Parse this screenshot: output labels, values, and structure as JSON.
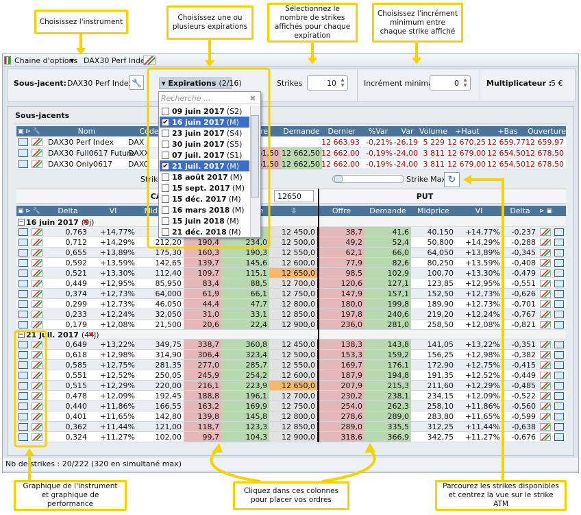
{
  "callouts": [
    "Choisissez l'instrument",
    "Choisissez une ou plusieurs expirations",
    "Sélectionnez le nombre de strikes affichés pour chaque expiration",
    "Choisissez l'incrément minimum entre chaque strike affiché",
    "Graphique de l'instrument et graphique de performance",
    "Cliquez dans ces colonnes pour placer vos ordres",
    "Parcourez les strikes disponibles et centrez la vue sur le strike ATM"
  ],
  "window": {
    "title": "Chaine d'options",
    "instrument": "DAX30 Perf Index"
  },
  "toolbar": {
    "underlying_label": "Sous-jacent:",
    "underlying": "DAX30 Perf Index",
    "expirations_label": "Expirations",
    "expirations_count": "(2/16)",
    "strikes_label": "Strikes",
    "strikes": "10",
    "increment_label": "Incrément minimal",
    "increment": "0",
    "multiplier_label": "Multiplicateur :",
    "multiplier": "5 €"
  },
  "expirations_dropdown": {
    "search_placeholder": "Recherche ...",
    "items": [
      {
        "date": "09 juin 2017",
        "code": "(S2)",
        "checked": false
      },
      {
        "date": "16 juin 2017",
        "code": "(M)",
        "checked": true
      },
      {
        "date": "23 juin 2017",
        "code": "(S4)",
        "checked": false
      },
      {
        "date": "30 juin 2017",
        "code": "(S5)",
        "checked": false
      },
      {
        "date": "07 juil. 2017",
        "code": "(S1)",
        "checked": false
      },
      {
        "date": "21 juil. 2017",
        "code": "(M)",
        "checked": true
      },
      {
        "date": "18 août 2017",
        "code": "(M)",
        "checked": false
      },
      {
        "date": "15 sept. 2017",
        "code": "(M)",
        "checked": false
      },
      {
        "date": "15 déc. 2017",
        "code": "(M)",
        "checked": false
      },
      {
        "date": "16 mars 2018",
        "code": "(M)",
        "checked": false
      },
      {
        "date": "15 juin 2018",
        "code": "(M)",
        "checked": false
      },
      {
        "date": "21 déc. 2018",
        "code": "(M)",
        "checked": false
      }
    ]
  },
  "underlyings": {
    "title": "Sous-jacents",
    "columns": [
      "Nom",
      "Code",
      "Offre",
      "Demande",
      "Dernier",
      "%Var",
      "Var",
      "Volume",
      "+Haut",
      "+Bas",
      "Ouverture"
    ],
    "rows": [
      [
        "DAX30 Perf Index",
        "DAX",
        null,
        null,
        "12 663,93",
        "-0,21%",
        "-26,19",
        "5 229",
        "12 670,25",
        "12 659,77",
        "12 659,97"
      ],
      [
        "DAX30 Full0617 Future",
        "DAXX",
        "12 661,50",
        "12 662,50",
        "12 662,00",
        "-0,19%",
        "-24,00",
        "3 811",
        "12 679,00",
        "12 654,50",
        "12 678,50"
      ],
      [
        "DAX30 Only0617",
        "DAXO",
        "12 661,50",
        "12 662,50",
        "12 662,00",
        "-0,19%",
        "-24,00",
        "3 811",
        "12 679,00",
        "12 654,50",
        "12 678,50"
      ]
    ]
  },
  "strike_bar": {
    "min_label": "Strike Min",
    "value": "12650",
    "max_label": "Strike Max"
  },
  "chain": {
    "call_label": "CALL",
    "put_label": "PUT",
    "columns": [
      "Delta",
      "VI",
      "Midprice",
      "Offre",
      "Demande",
      "⇩",
      "Offre",
      "Demande",
      "Midprice",
      "VI",
      "Delta"
    ],
    "groups": [
      {
        "expiry": "16 juin 2017",
        "days": "(9j)",
        "rows": [
          [
            "0,763",
            "+14,77%",
            null,
            null,
            null,
            "12 450,0",
            "38,7",
            "41,6",
            "40,150",
            "+14,77%",
            "-0,237"
          ],
          [
            "0,712",
            "+14,29%",
            "212,20",
            "190,4",
            "234,0",
            "12 500,0",
            "49,2",
            "52,4",
            "50,800",
            "+14,29%",
            "-0,288"
          ],
          [
            "0,655",
            "+13,89%",
            "175,30",
            "160,3",
            "190,3",
            "12 550,0",
            "62,1",
            "66,0",
            "64,050",
            "+13,89%",
            "-0,345"
          ],
          [
            "0,592",
            "+13,59%",
            "142,65",
            "139,7",
            "145,6",
            "12 600,0",
            "77,9",
            "82,6",
            "80,250",
            "+13,59%",
            "-0,408"
          ],
          [
            "0,521",
            "+13,30%",
            "112,40",
            "109,7",
            "115,1",
            "12 650,0",
            "98,5",
            "102,9",
            "100,70",
            "+13,30%",
            "-0,479"
          ],
          [
            "0,449",
            "+12,95%",
            "85,950",
            "83,4",
            "88,5",
            "12 700,0",
            "120,6",
            "127,1",
            "123,85",
            "+12,95%",
            "-0,551"
          ],
          [
            "0,374",
            "+12,73%",
            "64,000",
            "61,9",
            "66,1",
            "12 750,0",
            "147,9",
            "157,1",
            "152,50",
            "+12,73%",
            "-0,626"
          ],
          [
            "0,299",
            "+12,73%",
            "46,050",
            "44,4",
            "47,7",
            "12 800,0",
            "180,0",
            "199,8",
            "189,90",
            "+12,73%",
            "-0,701"
          ],
          [
            "0,233",
            "+12,24%",
            "32,050",
            "31,0",
            "33,1",
            "12 850,0",
            "197,8",
            "240,6",
            "219,20",
            "+12,24%",
            "-0,767"
          ],
          [
            "0,179",
            "+12,08%",
            "21,500",
            "20,6",
            "22,4",
            "12 900,0",
            "236,0",
            "281,0",
            "258,50",
            "+12,08%",
            "-0,821"
          ]
        ]
      },
      {
        "expiry": "21 juil. 2017",
        "days": "(44j)",
        "rows": [
          [
            "0,649",
            "+13,22%",
            "349,75",
            "338,7",
            "360,8",
            "12 450,0",
            "138,3",
            "143,8",
            "141,05",
            "+13,22%",
            "-0,351"
          ],
          [
            "0,618",
            "+12,98%",
            "314,90",
            "306,4",
            "323,4",
            "12 500,0",
            "153,3",
            "159,2",
            "156,25",
            "+12,98%",
            "-0,382"
          ],
          [
            "0,585",
            "+12,75%",
            "281,35",
            "277,0",
            "285,7",
            "12 550,0",
            "169,7",
            "176,1",
            "172,90",
            "+12,75%",
            "-0,415"
          ],
          [
            "0,551",
            "+12,52%",
            "250,05",
            "245,9",
            "254,2",
            "12 600,0",
            "187,9",
            "194,8",
            "191,35",
            "+12,52%",
            "-0,449"
          ],
          [
            "0,515",
            "+12,29%",
            "220,00",
            "216,1",
            "223,9",
            "12 650,0",
            "207,9",
            "215,3",
            "211,60",
            "+12,29%",
            "-0,485"
          ],
          [
            "0,478",
            "+12,09%",
            "192,45",
            "188,8",
            "196,1",
            "12 700,0",
            "230,2",
            "238,1",
            "234,15",
            "+12,09%",
            "-0,522"
          ],
          [
            "0,440",
            "+11,86%",
            "166,55",
            "163,2",
            "169,9",
            "12 750,0",
            "254,0",
            "262,3",
            "258,10",
            "+11,86%",
            "-0,560"
          ],
          [
            "0,401",
            "+11,65%",
            "142,80",
            "139,8",
            "145,8",
            "12 800,0",
            "278,6",
            "289,0",
            "283,80",
            "+11,65%",
            "-0,599"
          ],
          [
            "0,362",
            "+11,44%",
            "121,00",
            "118,7",
            "123,3",
            "12 850,0",
            "289,0",
            "335,5",
            "312,25",
            "+11,44%",
            "-0,638"
          ],
          [
            "0,324",
            "+11,27%",
            "102,00",
            "99,7",
            "104,3",
            "12 900,0",
            "318,6",
            "366,9",
            "342,75",
            "+11,27%",
            "-0,676"
          ]
        ]
      }
    ]
  },
  "footer": "Nb de strikes : 20/222 (320 en simultané max)"
}
